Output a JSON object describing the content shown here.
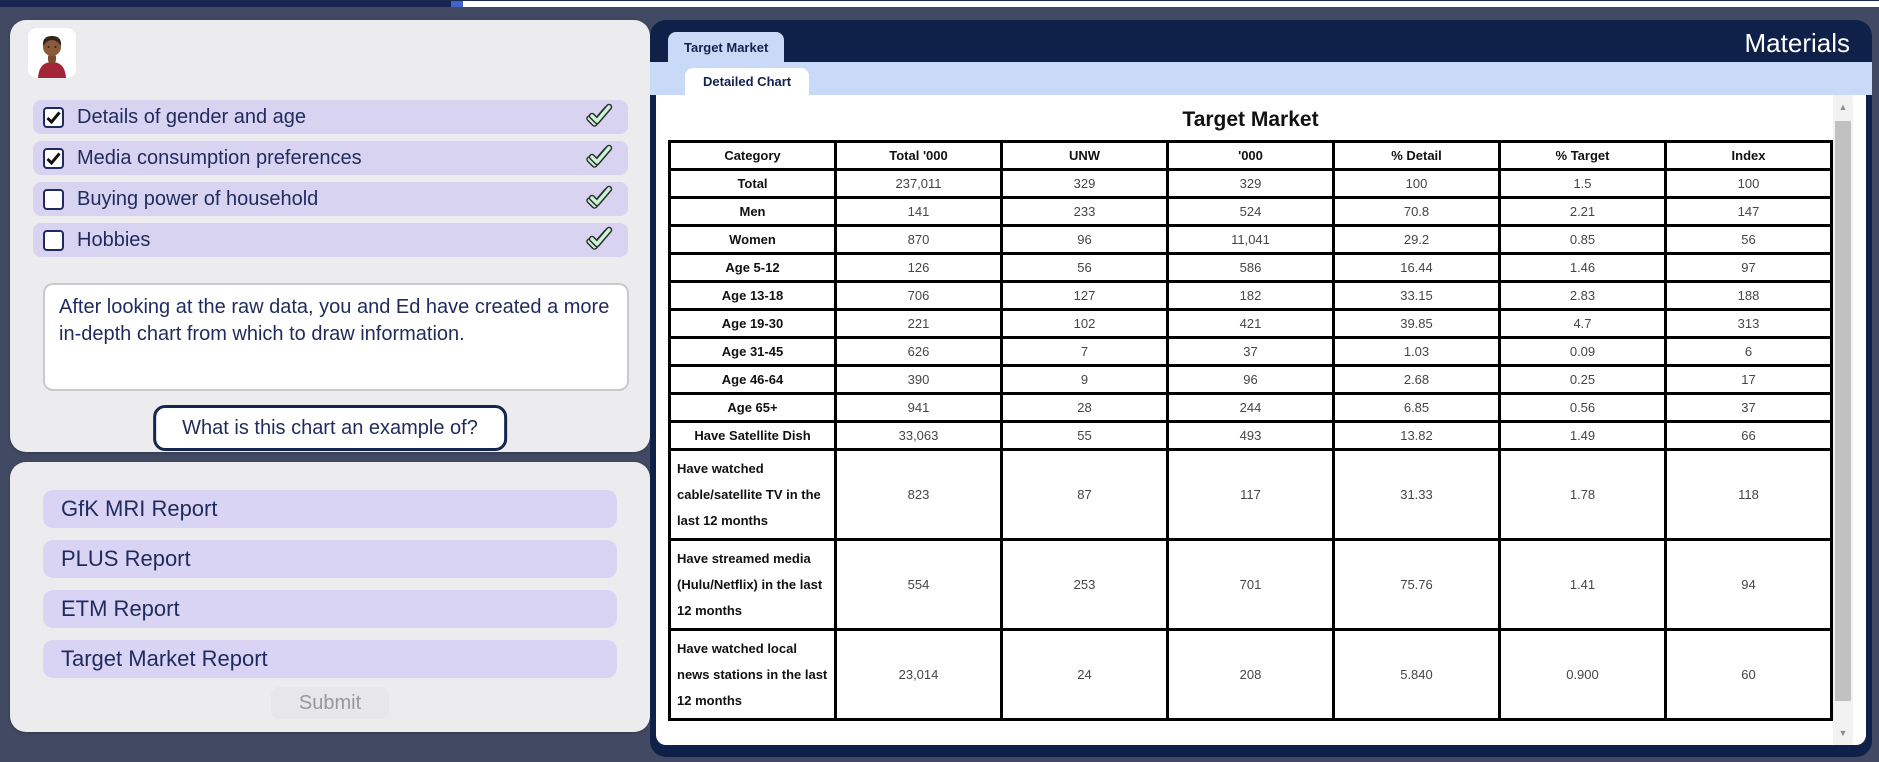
{
  "progress": {
    "percent_filled": 24
  },
  "left_panel": {
    "avatar": "student-avatar",
    "checklist": [
      {
        "label": "Details of gender and age",
        "checked": true
      },
      {
        "label": "Media consumption preferences",
        "checked": true
      },
      {
        "label": "Buying power of household",
        "checked": false
      },
      {
        "label": "Hobbies",
        "checked": false
      }
    ],
    "message": "After looking at the raw data, you and Ed have created a more in-depth chart from which to draw information.",
    "question": "What is this chart an example of?"
  },
  "answer_panel": {
    "options": [
      "GfK MRI Report",
      "PLUS Report",
      "ETM Report",
      "Target Market Report"
    ],
    "submit_label": "Submit"
  },
  "materials_panel": {
    "header_title": "Materials",
    "tab_label": "Target Market",
    "subtab_label": "Detailed Chart"
  },
  "colors": {
    "page_background": "#424A63",
    "card_background": "#ECECEF",
    "option_lavender": "#DAD4F4",
    "navy_text": "#1F2B5E",
    "panel_navy": "#0F2149",
    "tab_light_blue": "#C9DAF8",
    "done_check_green": "#C9F6D4"
  },
  "chart_data": {
    "type": "table",
    "title": "Target Market",
    "columns": [
      "Category",
      "Total '000",
      "UNW",
      "'000",
      "% Detail",
      "% Target",
      "Index"
    ],
    "rows": [
      [
        "Total",
        "237,011",
        "329",
        "329",
        "100",
        "1.5",
        "100"
      ],
      [
        "Men",
        "141",
        "233",
        "524",
        "70.8",
        "2.21",
        "147"
      ],
      [
        "Women",
        "870",
        "96",
        "11,041",
        "29.2",
        "0.85",
        "56"
      ],
      [
        "Age 5-12",
        "126",
        "56",
        "586",
        "16.44",
        "1.46",
        "97"
      ],
      [
        "Age 13-18",
        "706",
        "127",
        "182",
        "33.15",
        "2.83",
        "188"
      ],
      [
        "Age 19-30",
        "221",
        "102",
        "421",
        "39.85",
        "4.7",
        "313"
      ],
      [
        "Age 31-45",
        "626",
        "7",
        "37",
        "1.03",
        "0.09",
        "6"
      ],
      [
        "Age 46-64",
        "390",
        "9",
        "96",
        "2.68",
        "0.25",
        "17"
      ],
      [
        "Age 65+",
        "941",
        "28",
        "244",
        "6.85",
        "0.56",
        "37"
      ],
      [
        "Have Satellite Dish",
        "33,063",
        "55",
        "493",
        "13.82",
        "1.49",
        "66"
      ],
      [
        "Have watched cable/satellite TV in the last 12 months",
        "823",
        "87",
        "117",
        "31.33",
        "1.78",
        "118"
      ],
      [
        "Have streamed media (Hulu/Netflix) in the last 12 months",
        "554",
        "253",
        "701",
        "75.76",
        "1.41",
        "94"
      ],
      [
        "Have watched local news stations in the last 12 months",
        "23,014",
        "24",
        "208",
        "5.840",
        "0.900",
        "60"
      ]
    ]
  }
}
